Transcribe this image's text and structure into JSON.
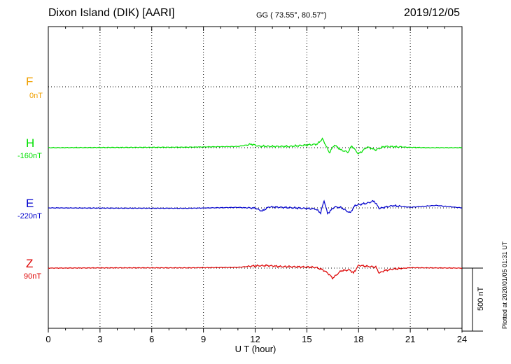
{
  "header": {
    "station": "Dixon Island (DIK)  [AARI]",
    "coords": "GG ( 73.55°,  80.57°)",
    "date": "2019/12/05"
  },
  "colors": {
    "F": "#f0a000",
    "H": "#00e000",
    "E": "#0000cc",
    "Z": "#dd0000"
  },
  "components": [
    {
      "key": "F",
      "label": "F",
      "baseline": "0nT"
    },
    {
      "key": "H",
      "label": "H",
      "baseline": "-160nT"
    },
    {
      "key": "E",
      "label": "E",
      "baseline": "-220nT"
    },
    {
      "key": "Z",
      "label": "Z",
      "baseline": "90nT"
    }
  ],
  "scale_bar": "500 nT",
  "plotted_note": "Plotted at 2020/01/05 01:31  UT",
  "chart_data": {
    "type": "line",
    "xlabel": "U T (hour)",
    "xlim": [
      0,
      24
    ],
    "xticks": [
      0,
      3,
      6,
      9,
      12,
      15,
      18,
      21,
      24
    ],
    "grid": true,
    "series": [
      {
        "name": "H",
        "x": [
          0,
          4,
          8,
          11,
          11.8,
          12.2,
          13,
          14,
          15.6,
          15.9,
          16.1,
          16.3,
          16.6,
          17.0,
          17.4,
          17.6,
          18.0,
          18.5,
          19.0,
          19.5,
          20,
          21,
          22,
          24
        ],
        "y": [
          0,
          2,
          4,
          10,
          28,
          12,
          10,
          10,
          28,
          70,
          20,
          -40,
          22,
          -20,
          -35,
          15,
          -50,
          6,
          -18,
          10,
          8,
          3,
          0,
          0
        ]
      },
      {
        "name": "E",
        "x": [
          0,
          4,
          8,
          11,
          12,
          12.4,
          12.8,
          14,
          15.5,
          15.8,
          16.0,
          16.2,
          16.6,
          17.0,
          17.5,
          17.8,
          18.5,
          18.9,
          19.2,
          20,
          21,
          22.5,
          24
        ],
        "y": [
          0,
          -2,
          -3,
          4,
          -2,
          -25,
          8,
          2,
          -8,
          -40,
          60,
          -45,
          8,
          2,
          -40,
          20,
          38,
          55,
          -4,
          18,
          5,
          20,
          0
        ]
      },
      {
        "name": "Z",
        "x": [
          0,
          4,
          8,
          11,
          12,
          12.7,
          13.5,
          14.5,
          15.5,
          15.9,
          16.2,
          16.5,
          17.0,
          17.5,
          17.7,
          18.0,
          18.5,
          19.0,
          19.2,
          19.5,
          20,
          21,
          24
        ],
        "y": [
          0,
          2,
          2,
          6,
          18,
          20,
          12,
          10,
          6,
          -12,
          -38,
          -80,
          -20,
          -15,
          -40,
          22,
          14,
          8,
          -40,
          -20,
          -8,
          3,
          0
        ]
      }
    ],
    "scale_nT": 500
  }
}
